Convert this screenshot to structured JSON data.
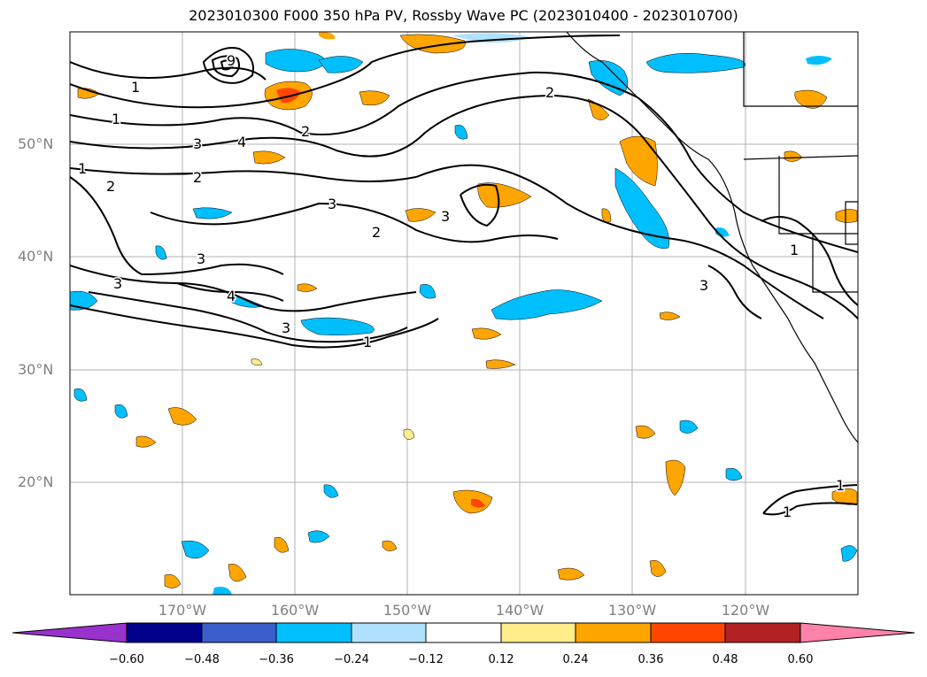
{
  "title": "2023010300 F000 350 hPa PV, Rossby Wave PC (2023010400 - 2023010700)",
  "map": {
    "lon_range": [
      -180,
      -110
    ],
    "lat_range": [
      10,
      60
    ],
    "lat_labels": [
      "50°N",
      "40°N",
      "30°N",
      "20°N"
    ],
    "lon_labels": [
      "170°W",
      "160°W",
      "150°W",
      "140°W",
      "130°W",
      "120°W"
    ]
  },
  "colorbar": {
    "ticks": [
      "−0.60",
      "−0.48",
      "−0.36",
      "−0.24",
      "−0.12",
      "0.12",
      "0.24",
      "0.36",
      "0.48",
      "0.60"
    ],
    "colors": [
      "#9932cc",
      "#00008b",
      "#3a5fcd",
      "#00bfff",
      "#b0e2ff",
      "#ffffff",
      "#ffec8b",
      "#ffa500",
      "#ff4500",
      "#b22222",
      "#ff82ab"
    ]
  },
  "contour_labels": [
    "1",
    "2",
    "3",
    "4",
    "9"
  ]
}
